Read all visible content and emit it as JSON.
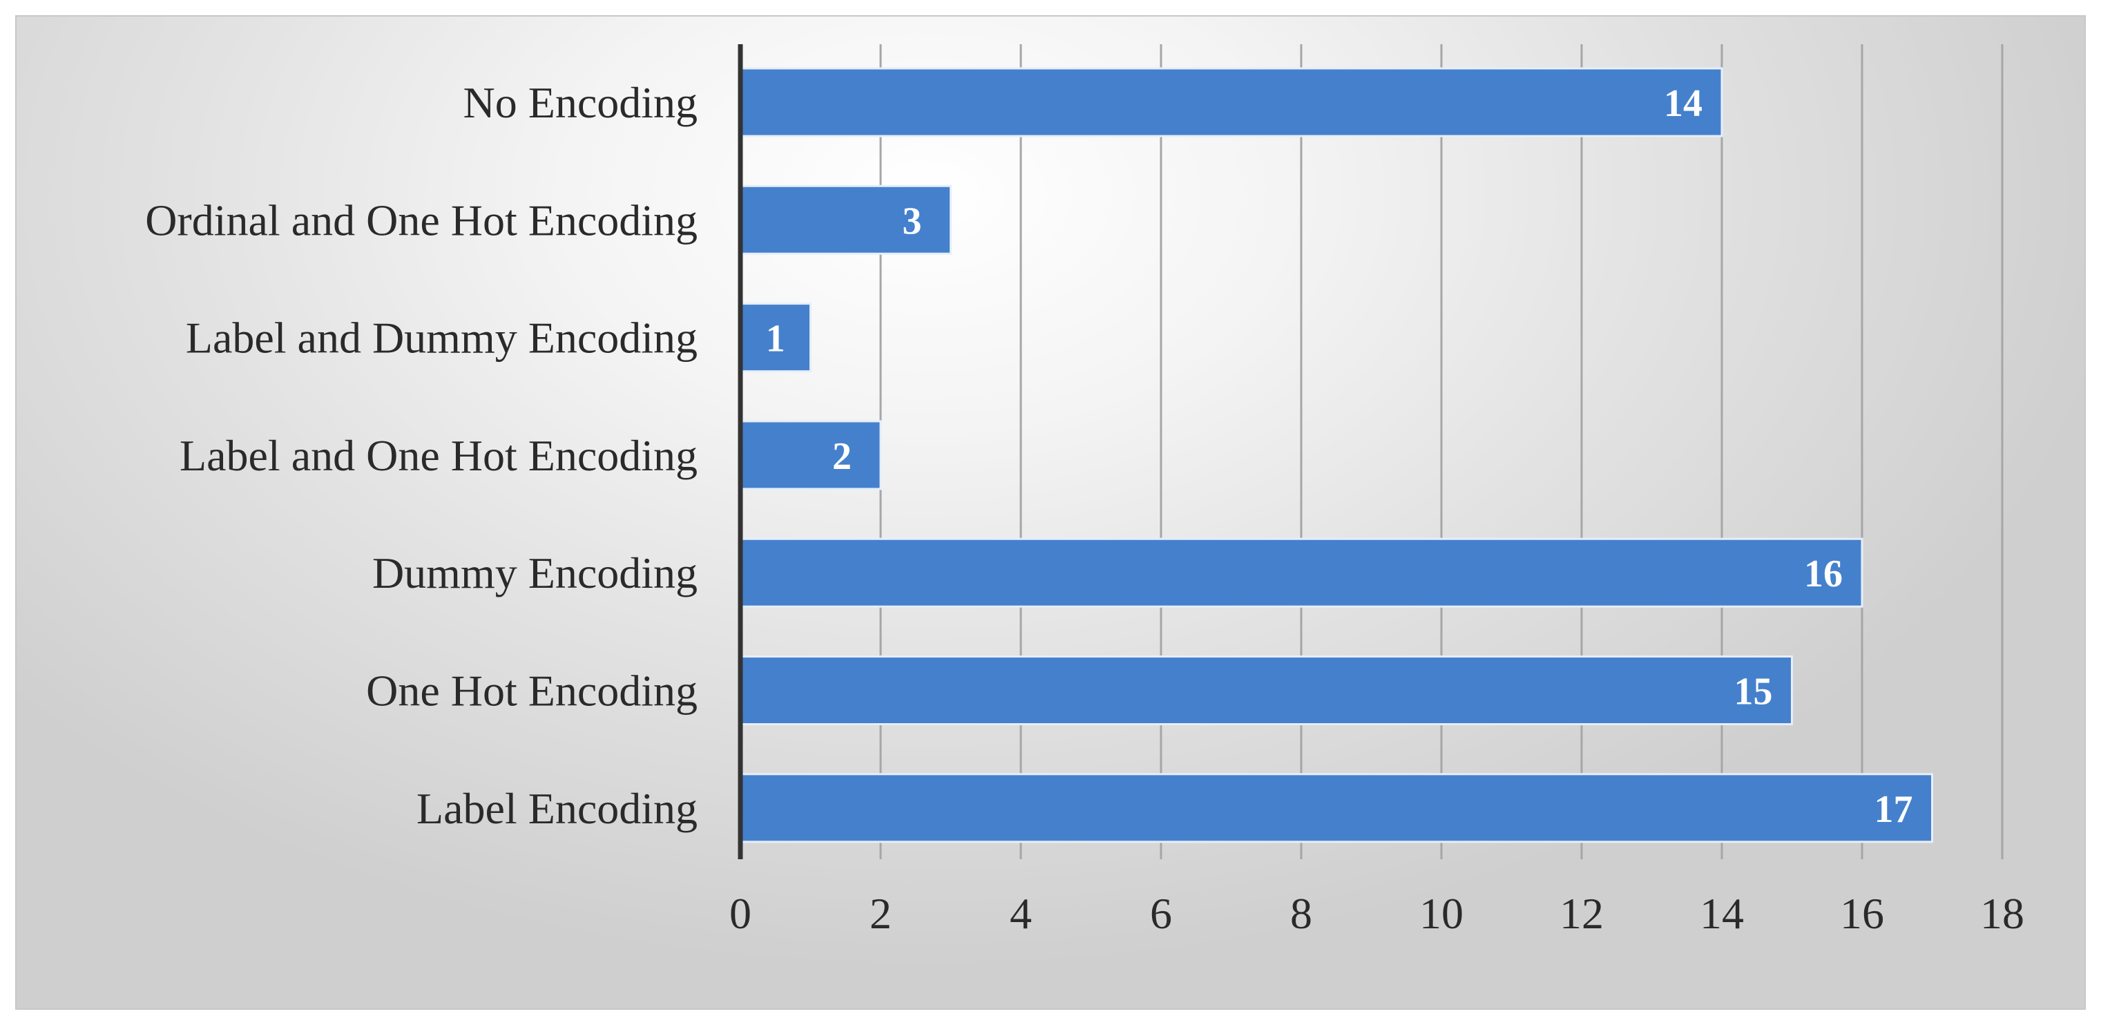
{
  "chart_data": {
    "type": "bar",
    "orientation": "horizontal",
    "categories": [
      "No Encoding",
      "Ordinal and One Hot Encoding",
      "Label and Dummy Encoding",
      "Label and One Hot Encoding",
      "Dummy Encoding",
      "One Hot Encoding",
      "Label Encoding"
    ],
    "values": [
      14,
      3,
      1,
      2,
      16,
      15,
      17
    ],
    "data_labels": [
      "14",
      "3",
      "1",
      "2",
      "16",
      "15",
      "17"
    ],
    "xlim": [
      0,
      18
    ],
    "xticks": [
      0,
      2,
      4,
      6,
      8,
      10,
      12,
      14,
      16,
      18
    ],
    "grid": "vertical",
    "legend": "none",
    "title": "",
    "xlabel": "",
    "ylabel": "",
    "colors": {
      "bar_fill": "#4580cc",
      "bar_edge": "#e6eefa",
      "gridline": "#a6a6a6",
      "axis_line": "#333333"
    }
  }
}
